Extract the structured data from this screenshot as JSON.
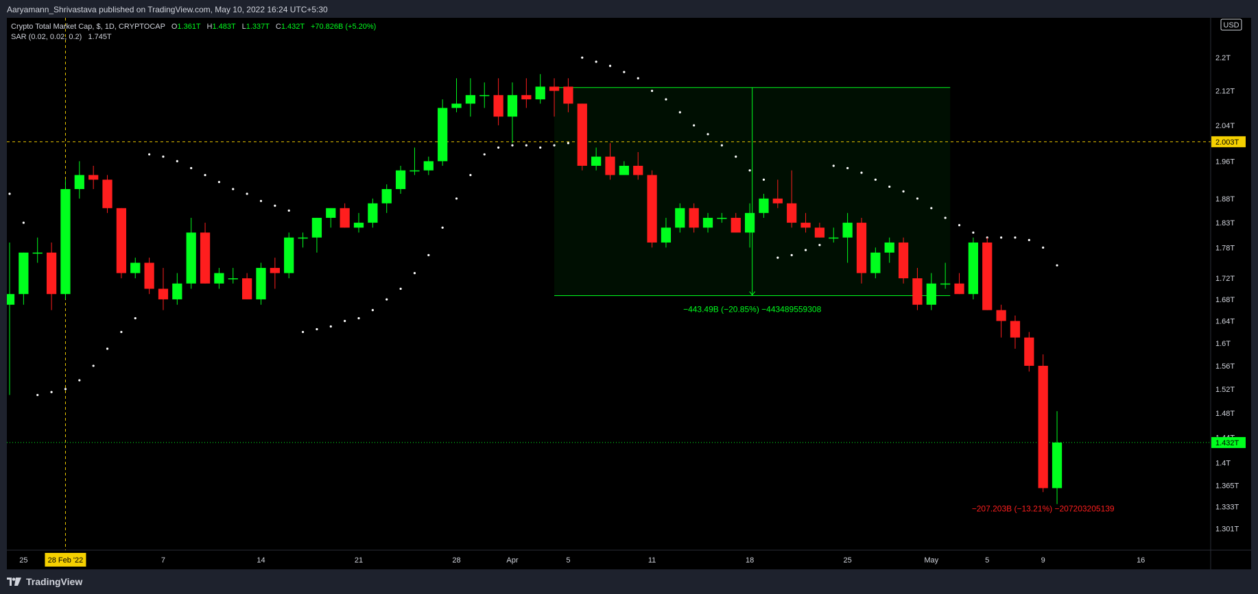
{
  "header": {
    "publisher_line": "Aaryamann_Shrivastava published on TradingView.com, May 10, 2022 16:24 UTC+5:30"
  },
  "legend": {
    "symbol": "Crypto Total Market Cap, $, 1D, CRYPTOCAP",
    "o_label": "O",
    "o_value": "1.361T",
    "h_label": "H",
    "h_value": "1.483T",
    "l_label": "L",
    "l_value": "1.337T",
    "c_label": "C",
    "c_value": "1.432T",
    "change": "+70.826B (+5.20%)",
    "indicator": "SAR (0.02, 0.02, 0.2)",
    "indicator_value": "1.745T"
  },
  "footer": {
    "brand": "TradingView"
  },
  "colors": {
    "up": "#00ff1e",
    "down": "#ff1e1e",
    "background": "#000000",
    "frame": "#1e222d",
    "text": "#d1d4dc",
    "horizontal_line": "#f5d000",
    "last_price": "#00ff1e",
    "range_box": "#00ff1e",
    "sar_dot": "#ffffff"
  },
  "chart_data": {
    "type": "candlestick",
    "title": "Crypto Total Market Cap, $, 1D, CRYPTOCAP",
    "currency_label": "USD",
    "scale": "log",
    "grid": false,
    "ylim": [
      1.27,
      2.3
    ],
    "y_ticks": [
      "2.2T",
      "2.12T",
      "2.04T",
      "1.96T",
      "1.88T",
      "1.83T",
      "1.78T",
      "1.72T",
      "1.68T",
      "1.64T",
      "1.6T",
      "1.56T",
      "1.52T",
      "1.48T",
      "1.44T",
      "1.4T",
      "1.365T",
      "1.333T",
      "1.301T"
    ],
    "y_tick_values": [
      2.2,
      2.12,
      2.04,
      1.96,
      1.88,
      1.83,
      1.78,
      1.72,
      1.68,
      1.64,
      1.6,
      1.56,
      1.52,
      1.48,
      1.44,
      1.4,
      1.365,
      1.333,
      1.301
    ],
    "x_labels": [
      {
        "date": "2022-02-25",
        "label": "25"
      },
      {
        "date": "2022-03-07",
        "label": "7"
      },
      {
        "date": "2022-03-14",
        "label": "14"
      },
      {
        "date": "2022-03-21",
        "label": "21"
      },
      {
        "date": "2022-03-28",
        "label": "28"
      },
      {
        "date": "2022-04-01",
        "label": "Apr"
      },
      {
        "date": "2022-04-05",
        "label": "5"
      },
      {
        "date": "2022-04-11",
        "label": "11"
      },
      {
        "date": "2022-04-18",
        "label": "18"
      },
      {
        "date": "2022-04-25",
        "label": "25"
      },
      {
        "date": "2022-05-01",
        "label": "May"
      },
      {
        "date": "2022-05-05",
        "label": "5"
      },
      {
        "date": "2022-05-09",
        "label": "9"
      },
      {
        "date": "2022-05-16",
        "label": "16"
      }
    ],
    "x_range": [
      "2022-02-24",
      "2022-05-21"
    ],
    "crosshair_date": "2022-02-28",
    "crosshair_label": "28 Feb '22",
    "horizontal_line": {
      "value": 2.003,
      "label": "2.003T"
    },
    "last_price": {
      "value": 1.432,
      "label": "1.432T"
    },
    "annotations": [
      {
        "text": "−443.49B (−20.85%) −443489559308",
        "color": "#00ff1e",
        "start_date": "2022-04-04",
        "end_date": "2022-05-02",
        "high": 2.128,
        "low": 1.687
      },
      {
        "text": "−207.203B (−13.21%) −207203205139",
        "color": "#ff1e1e",
        "date": "2022-05-09",
        "value": 1.33
      }
    ],
    "candles": [
      {
        "date": "2022-02-24",
        "o": 1.67,
        "h": 1.79,
        "l": 1.51,
        "c": 1.69
      },
      {
        "date": "2022-02-25",
        "o": 1.69,
        "h": 1.77,
        "l": 1.67,
        "c": 1.77
      },
      {
        "date": "2022-02-26",
        "o": 1.77,
        "h": 1.8,
        "l": 1.75,
        "c": 1.77
      },
      {
        "date": "2022-02-27",
        "o": 1.77,
        "h": 1.79,
        "l": 1.66,
        "c": 1.69
      },
      {
        "date": "2022-02-28",
        "o": 1.69,
        "h": 1.92,
        "l": 1.68,
        "c": 1.9
      },
      {
        "date": "2022-03-01",
        "o": 1.9,
        "h": 1.96,
        "l": 1.88,
        "c": 1.93
      },
      {
        "date": "2022-03-02",
        "o": 1.93,
        "h": 1.95,
        "l": 1.9,
        "c": 1.92
      },
      {
        "date": "2022-03-03",
        "o": 1.92,
        "h": 1.93,
        "l": 1.85,
        "c": 1.86
      },
      {
        "date": "2022-03-04",
        "o": 1.86,
        "h": 1.86,
        "l": 1.72,
        "c": 1.73
      },
      {
        "date": "2022-03-05",
        "o": 1.73,
        "h": 1.76,
        "l": 1.72,
        "c": 1.75
      },
      {
        "date": "2022-03-06",
        "o": 1.75,
        "h": 1.76,
        "l": 1.69,
        "c": 1.7
      },
      {
        "date": "2022-03-07",
        "o": 1.7,
        "h": 1.74,
        "l": 1.66,
        "c": 1.68
      },
      {
        "date": "2022-03-08",
        "o": 1.68,
        "h": 1.73,
        "l": 1.67,
        "c": 1.71
      },
      {
        "date": "2022-03-09",
        "o": 1.71,
        "h": 1.84,
        "l": 1.7,
        "c": 1.81
      },
      {
        "date": "2022-03-10",
        "o": 1.81,
        "h": 1.83,
        "l": 1.71,
        "c": 1.71
      },
      {
        "date": "2022-03-11",
        "o": 1.71,
        "h": 1.74,
        "l": 1.7,
        "c": 1.73
      },
      {
        "date": "2022-03-12",
        "o": 1.72,
        "h": 1.74,
        "l": 1.71,
        "c": 1.72
      },
      {
        "date": "2022-03-13",
        "o": 1.72,
        "h": 1.73,
        "l": 1.68,
        "c": 1.68
      },
      {
        "date": "2022-03-14",
        "o": 1.68,
        "h": 1.75,
        "l": 1.67,
        "c": 1.74
      },
      {
        "date": "2022-03-15",
        "o": 1.74,
        "h": 1.76,
        "l": 1.7,
        "c": 1.73
      },
      {
        "date": "2022-03-16",
        "o": 1.73,
        "h": 1.81,
        "l": 1.72,
        "c": 1.8
      },
      {
        "date": "2022-03-17",
        "o": 1.8,
        "h": 1.81,
        "l": 1.78,
        "c": 1.8
      },
      {
        "date": "2022-03-18",
        "o": 1.8,
        "h": 1.84,
        "l": 1.77,
        "c": 1.84
      },
      {
        "date": "2022-03-19",
        "o": 1.84,
        "h": 1.86,
        "l": 1.82,
        "c": 1.86
      },
      {
        "date": "2022-03-20",
        "o": 1.86,
        "h": 1.87,
        "l": 1.82,
        "c": 1.82
      },
      {
        "date": "2022-03-21",
        "o": 1.82,
        "h": 1.85,
        "l": 1.81,
        "c": 1.83
      },
      {
        "date": "2022-03-22",
        "o": 1.83,
        "h": 1.88,
        "l": 1.82,
        "c": 1.87
      },
      {
        "date": "2022-03-23",
        "o": 1.87,
        "h": 1.91,
        "l": 1.85,
        "c": 1.9
      },
      {
        "date": "2022-03-24",
        "o": 1.9,
        "h": 1.95,
        "l": 1.89,
        "c": 1.94
      },
      {
        "date": "2022-03-25",
        "o": 1.94,
        "h": 1.99,
        "l": 1.93,
        "c": 1.94
      },
      {
        "date": "2022-03-26",
        "o": 1.94,
        "h": 1.97,
        "l": 1.93,
        "c": 1.96
      },
      {
        "date": "2022-03-27",
        "o": 1.96,
        "h": 2.1,
        "l": 1.95,
        "c": 2.08
      },
      {
        "date": "2022-03-28",
        "o": 2.08,
        "h": 2.15,
        "l": 2.07,
        "c": 2.09
      },
      {
        "date": "2022-03-29",
        "o": 2.09,
        "h": 2.15,
        "l": 2.06,
        "c": 2.11
      },
      {
        "date": "2022-03-30",
        "o": 2.11,
        "h": 2.14,
        "l": 2.08,
        "c": 2.11
      },
      {
        "date": "2022-03-31",
        "o": 2.11,
        "h": 2.15,
        "l": 2.04,
        "c": 2.06
      },
      {
        "date": "2022-04-01",
        "o": 2.06,
        "h": 2.14,
        "l": 2.0,
        "c": 2.11
      },
      {
        "date": "2022-04-02",
        "o": 2.11,
        "h": 2.15,
        "l": 2.08,
        "c": 2.1
      },
      {
        "date": "2022-04-03",
        "o": 2.1,
        "h": 2.16,
        "l": 2.09,
        "c": 2.13
      },
      {
        "date": "2022-04-04",
        "o": 2.13,
        "h": 2.15,
        "l": 2.06,
        "c": 2.12
      },
      {
        "date": "2022-04-05",
        "o": 2.13,
        "h": 2.15,
        "l": 2.07,
        "c": 2.09
      },
      {
        "date": "2022-04-06",
        "o": 2.09,
        "h": 2.09,
        "l": 1.94,
        "c": 1.95
      },
      {
        "date": "2022-04-07",
        "o": 1.95,
        "h": 1.99,
        "l": 1.94,
        "c": 1.97
      },
      {
        "date": "2022-04-08",
        "o": 1.97,
        "h": 2.0,
        "l": 1.92,
        "c": 1.93
      },
      {
        "date": "2022-04-09",
        "o": 1.93,
        "h": 1.96,
        "l": 1.93,
        "c": 1.95
      },
      {
        "date": "2022-04-10",
        "o": 1.95,
        "h": 1.98,
        "l": 1.92,
        "c": 1.93
      },
      {
        "date": "2022-04-11",
        "o": 1.93,
        "h": 1.94,
        "l": 1.78,
        "c": 1.79
      },
      {
        "date": "2022-04-12",
        "o": 1.79,
        "h": 1.84,
        "l": 1.78,
        "c": 1.82
      },
      {
        "date": "2022-04-13",
        "o": 1.82,
        "h": 1.87,
        "l": 1.81,
        "c": 1.86
      },
      {
        "date": "2022-04-14",
        "o": 1.86,
        "h": 1.87,
        "l": 1.81,
        "c": 1.82
      },
      {
        "date": "2022-04-15",
        "o": 1.82,
        "h": 1.85,
        "l": 1.81,
        "c": 1.84
      },
      {
        "date": "2022-04-16",
        "o": 1.84,
        "h": 1.85,
        "l": 1.83,
        "c": 1.84
      },
      {
        "date": "2022-04-17",
        "o": 1.84,
        "h": 1.85,
        "l": 1.81,
        "c": 1.81
      },
      {
        "date": "2022-04-18",
        "o": 1.81,
        "h": 1.87,
        "l": 1.78,
        "c": 1.85
      },
      {
        "date": "2022-04-19",
        "o": 1.85,
        "h": 1.89,
        "l": 1.84,
        "c": 1.88
      },
      {
        "date": "2022-04-20",
        "o": 1.88,
        "h": 1.92,
        "l": 1.86,
        "c": 1.87
      },
      {
        "date": "2022-04-21",
        "o": 1.87,
        "h": 1.94,
        "l": 1.82,
        "c": 1.83
      },
      {
        "date": "2022-04-22",
        "o": 1.83,
        "h": 1.85,
        "l": 1.81,
        "c": 1.82
      },
      {
        "date": "2022-04-23",
        "o": 1.82,
        "h": 1.83,
        "l": 1.8,
        "c": 1.8
      },
      {
        "date": "2022-04-24",
        "o": 1.8,
        "h": 1.82,
        "l": 1.79,
        "c": 1.8
      },
      {
        "date": "2022-04-25",
        "o": 1.8,
        "h": 1.85,
        "l": 1.75,
        "c": 1.83
      },
      {
        "date": "2022-04-26",
        "o": 1.83,
        "h": 1.84,
        "l": 1.71,
        "c": 1.73
      },
      {
        "date": "2022-04-27",
        "o": 1.73,
        "h": 1.78,
        "l": 1.72,
        "c": 1.77
      },
      {
        "date": "2022-04-28",
        "o": 1.77,
        "h": 1.8,
        "l": 1.75,
        "c": 1.79
      },
      {
        "date": "2022-04-29",
        "o": 1.79,
        "h": 1.8,
        "l": 1.71,
        "c": 1.72
      },
      {
        "date": "2022-04-30",
        "o": 1.72,
        "h": 1.74,
        "l": 1.66,
        "c": 1.67
      },
      {
        "date": "2022-05-01",
        "o": 1.67,
        "h": 1.73,
        "l": 1.66,
        "c": 1.71
      },
      {
        "date": "2022-05-02",
        "o": 1.71,
        "h": 1.75,
        "l": 1.7,
        "c": 1.71
      },
      {
        "date": "2022-05-03",
        "o": 1.71,
        "h": 1.73,
        "l": 1.69,
        "c": 1.69
      },
      {
        "date": "2022-05-04",
        "o": 1.69,
        "h": 1.8,
        "l": 1.68,
        "c": 1.79
      },
      {
        "date": "2022-05-05",
        "o": 1.79,
        "h": 1.8,
        "l": 1.66,
        "c": 1.66
      },
      {
        "date": "2022-05-06",
        "o": 1.66,
        "h": 1.67,
        "l": 1.61,
        "c": 1.64
      },
      {
        "date": "2022-05-07",
        "o": 1.64,
        "h": 1.65,
        "l": 1.59,
        "c": 1.61
      },
      {
        "date": "2022-05-08",
        "o": 1.61,
        "h": 1.62,
        "l": 1.55,
        "c": 1.56
      },
      {
        "date": "2022-05-09",
        "o": 1.56,
        "h": 1.58,
        "l": 1.355,
        "c": 1.361
      },
      {
        "date": "2022-05-10",
        "o": 1.361,
        "h": 1.483,
        "l": 1.337,
        "c": 1.432
      }
    ],
    "sar": [
      {
        "date": "2022-02-24",
        "v": 1.89
      },
      {
        "date": "2022-02-25",
        "v": 1.83
      },
      {
        "date": "2022-02-26",
        "v": 1.51
      },
      {
        "date": "2022-02-27",
        "v": 1.515
      },
      {
        "date": "2022-02-28",
        "v": 1.52
      },
      {
        "date": "2022-03-01",
        "v": 1.535
      },
      {
        "date": "2022-03-02",
        "v": 1.56
      },
      {
        "date": "2022-03-03",
        "v": 1.59
      },
      {
        "date": "2022-03-04",
        "v": 1.62
      },
      {
        "date": "2022-03-05",
        "v": 1.645
      },
      {
        "date": "2022-03-06",
        "v": 1.975
      },
      {
        "date": "2022-03-07",
        "v": 1.97
      },
      {
        "date": "2022-03-08",
        "v": 1.96
      },
      {
        "date": "2022-03-09",
        "v": 1.945
      },
      {
        "date": "2022-03-10",
        "v": 1.93
      },
      {
        "date": "2022-03-11",
        "v": 1.915
      },
      {
        "date": "2022-03-12",
        "v": 1.9
      },
      {
        "date": "2022-03-13",
        "v": 1.89
      },
      {
        "date": "2022-03-14",
        "v": 1.875
      },
      {
        "date": "2022-03-15",
        "v": 1.865
      },
      {
        "date": "2022-03-16",
        "v": 1.855
      },
      {
        "date": "2022-03-17",
        "v": 1.62
      },
      {
        "date": "2022-03-18",
        "v": 1.625
      },
      {
        "date": "2022-03-19",
        "v": 1.63
      },
      {
        "date": "2022-03-20",
        "v": 1.64
      },
      {
        "date": "2022-03-21",
        "v": 1.645
      },
      {
        "date": "2022-03-22",
        "v": 1.66
      },
      {
        "date": "2022-03-23",
        "v": 1.68
      },
      {
        "date": "2022-03-24",
        "v": 1.7
      },
      {
        "date": "2022-03-25",
        "v": 1.73
      },
      {
        "date": "2022-03-26",
        "v": 1.765
      },
      {
        "date": "2022-03-27",
        "v": 1.82
      },
      {
        "date": "2022-03-28",
        "v": 1.88
      },
      {
        "date": "2022-03-29",
        "v": 1.93
      },
      {
        "date": "2022-03-30",
        "v": 1.975
      },
      {
        "date": "2022-03-31",
        "v": 1.99
      },
      {
        "date": "2022-04-01",
        "v": 1.995
      },
      {
        "date": "2022-04-02",
        "v": 1.995
      },
      {
        "date": "2022-04-03",
        "v": 1.99
      },
      {
        "date": "2022-04-04",
        "v": 1.995
      },
      {
        "date": "2022-04-05",
        "v": 2.0
      },
      {
        "date": "2022-04-06",
        "v": 2.2
      },
      {
        "date": "2022-04-07",
        "v": 2.19
      },
      {
        "date": "2022-04-08",
        "v": 2.18
      },
      {
        "date": "2022-04-09",
        "v": 2.165
      },
      {
        "date": "2022-04-10",
        "v": 2.15
      },
      {
        "date": "2022-04-11",
        "v": 2.12
      },
      {
        "date": "2022-04-12",
        "v": 2.1
      },
      {
        "date": "2022-04-13",
        "v": 2.07
      },
      {
        "date": "2022-04-14",
        "v": 2.04
      },
      {
        "date": "2022-04-15",
        "v": 2.02
      },
      {
        "date": "2022-04-16",
        "v": 1.995
      },
      {
        "date": "2022-04-17",
        "v": 1.97
      },
      {
        "date": "2022-04-18",
        "v": 1.94
      },
      {
        "date": "2022-04-19",
        "v": 1.92
      },
      {
        "date": "2022-04-20",
        "v": 1.76
      },
      {
        "date": "2022-04-21",
        "v": 1.765
      },
      {
        "date": "2022-04-22",
        "v": 1.775
      },
      {
        "date": "2022-04-23",
        "v": 1.785
      },
      {
        "date": "2022-04-24",
        "v": 1.95
      },
      {
        "date": "2022-04-25",
        "v": 1.945
      },
      {
        "date": "2022-04-26",
        "v": 1.935
      },
      {
        "date": "2022-04-27",
        "v": 1.92
      },
      {
        "date": "2022-04-28",
        "v": 1.905
      },
      {
        "date": "2022-04-29",
        "v": 1.895
      },
      {
        "date": "2022-04-30",
        "v": 1.88
      },
      {
        "date": "2022-05-01",
        "v": 1.86
      },
      {
        "date": "2022-05-02",
        "v": 1.84
      },
      {
        "date": "2022-05-03",
        "v": 1.825
      },
      {
        "date": "2022-05-04",
        "v": 1.81
      },
      {
        "date": "2022-05-05",
        "v": 1.8
      },
      {
        "date": "2022-05-06",
        "v": 1.8
      },
      {
        "date": "2022-05-07",
        "v": 1.8
      },
      {
        "date": "2022-05-08",
        "v": 1.795
      },
      {
        "date": "2022-05-09",
        "v": 1.78
      },
      {
        "date": "2022-05-10",
        "v": 1.745
      }
    ]
  }
}
